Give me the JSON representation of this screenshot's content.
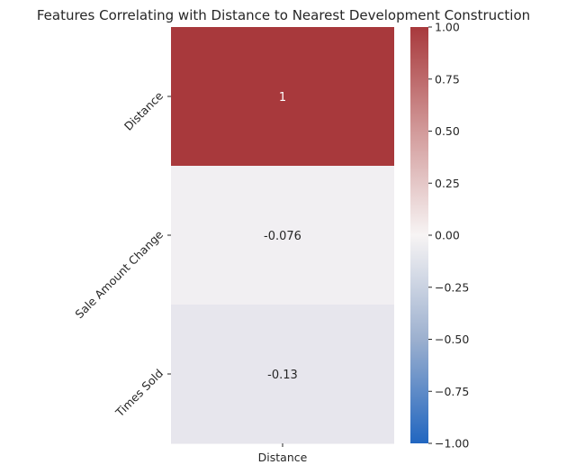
{
  "chart_data": {
    "type": "heatmap",
    "title": "Features Correlating with Distance to Nearest Development Construction",
    "rows": [
      "Distance",
      "Sale Amount Change",
      "Times Sold"
    ],
    "columns": [
      "Distance"
    ],
    "values": [
      [
        1.0
      ],
      [
        -0.076
      ],
      [
        -0.13
      ]
    ],
    "annotations": [
      "1",
      "-0.076",
      "-0.13"
    ],
    "colormap": "vlag",
    "colorbar": {
      "range": [
        -1.0,
        1.0
      ],
      "ticks": [
        -1.0,
        -0.75,
        -0.5,
        -0.25,
        0.0,
        0.25,
        0.5,
        0.75,
        1.0
      ],
      "tick_labels": [
        "−1.00",
        "−0.75",
        "−0.50",
        "−0.25",
        "0.00",
        "0.25",
        "0.50",
        "0.75",
        "1.00"
      ]
    },
    "colors": {
      "cell_1": "#a8393c",
      "cell_neg0076": "#f1eff2",
      "cell_neg013": "#e7e6ed",
      "low": "#2166c0",
      "mid": "#f7f4f4",
      "high": "#a8393c"
    }
  }
}
